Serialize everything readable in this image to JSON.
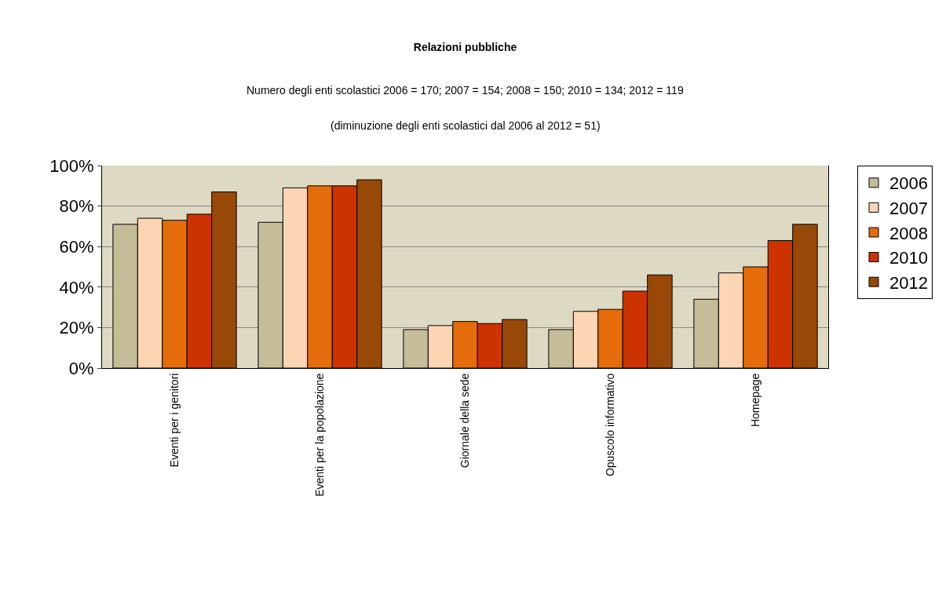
{
  "chart_data": {
    "type": "bar",
    "title": "Relazioni pubbliche",
    "subtitle": "Numero degli enti scolastici 2006 = 170; 2007 = 154; 2008 = 150; 2010 = 134; 2012 = 119",
    "annotations": [
      "(diminuzione degli enti scolastici dal 2006 al 2012 = 51)"
    ],
    "categories": [
      "Eventi per i genitori",
      "Eventi per la popolazione",
      "Giornale della sede",
      "Opuscolo informativo",
      "Homepage"
    ],
    "series": [
      {
        "name": "2006",
        "color": "#c4bd97",
        "values": [
          0.71,
          0.72,
          0.19,
          0.19,
          0.34
        ]
      },
      {
        "name": "2007",
        "color": "#fcd5b5",
        "values": [
          0.74,
          0.89,
          0.21,
          0.28,
          0.47
        ]
      },
      {
        "name": "2008",
        "color": "#e46c0a",
        "values": [
          0.73,
          0.9,
          0.23,
          0.29,
          0.5
        ]
      },
      {
        "name": "2010",
        "color": "#cc3300",
        "values": [
          0.76,
          0.9,
          0.22,
          0.38,
          0.63
        ]
      },
      {
        "name": "2012",
        "color": "#984807",
        "values": [
          0.87,
          0.93,
          0.24,
          0.46,
          0.71
        ]
      }
    ],
    "ylim": [
      0,
      1
    ],
    "yticks": [
      {
        "value": 0,
        "label": "0%"
      },
      {
        "value": 0.2,
        "label": "20%"
      },
      {
        "value": 0.4,
        "label": "40%"
      },
      {
        "value": 0.6,
        "label": "60%"
      },
      {
        "value": 0.8,
        "label": "80%"
      },
      {
        "value": 1,
        "label": "100%"
      }
    ],
    "grid": "y",
    "legend": "right"
  }
}
